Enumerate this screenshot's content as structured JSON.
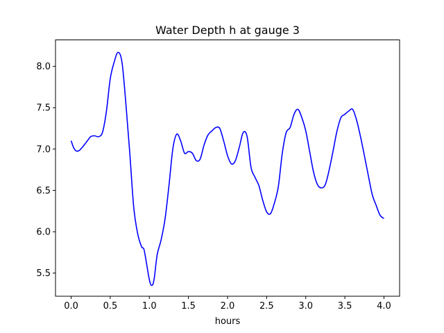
{
  "chart_data": {
    "type": "line",
    "title": "Water Depth h at gauge 3",
    "xlabel": "hours",
    "ylabel": "",
    "xlim": [
      -0.2,
      4.2
    ],
    "ylim": [
      5.22,
      8.32
    ],
    "xticks": [
      0.0,
      0.5,
      1.0,
      1.5,
      2.0,
      2.5,
      3.0,
      3.5,
      4.0
    ],
    "xtick_labels": [
      "0.0",
      "0.5",
      "1.0",
      "1.5",
      "2.0",
      "2.5",
      "3.0",
      "3.5",
      "4.0"
    ],
    "yticks": [
      5.5,
      6.0,
      6.5,
      7.0,
      7.5,
      8.0
    ],
    "ytick_labels": [
      "5.5",
      "6.0",
      "6.5",
      "7.0",
      "7.5",
      "8.0"
    ],
    "grid": false,
    "series": [
      {
        "color": "#0000ff",
        "x": [
          0.0,
          0.03,
          0.06,
          0.1,
          0.15,
          0.2,
          0.25,
          0.3,
          0.35,
          0.4,
          0.45,
          0.5,
          0.55,
          0.6,
          0.65,
          0.7,
          0.75,
          0.8,
          0.85,
          0.9,
          0.93,
          0.96,
          1.0,
          1.03,
          1.06,
          1.1,
          1.15,
          1.2,
          1.25,
          1.3,
          1.35,
          1.4,
          1.45,
          1.5,
          1.55,
          1.6,
          1.65,
          1.7,
          1.75,
          1.8,
          1.85,
          1.9,
          1.95,
          2.0,
          2.05,
          2.1,
          2.15,
          2.2,
          2.25,
          2.3,
          2.35,
          2.4,
          2.45,
          2.5,
          2.55,
          2.6,
          2.65,
          2.7,
          2.75,
          2.8,
          2.85,
          2.9,
          2.95,
          3.0,
          3.05,
          3.1,
          3.15,
          3.2,
          3.25,
          3.3,
          3.35,
          3.4,
          3.45,
          3.5,
          3.55,
          3.6,
          3.65,
          3.7,
          3.75,
          3.8,
          3.85,
          3.9,
          3.95,
          4.0
        ],
        "y": [
          7.1,
          7.02,
          6.98,
          6.98,
          7.03,
          7.09,
          7.15,
          7.16,
          7.15,
          7.2,
          7.45,
          7.85,
          8.05,
          8.17,
          8.05,
          7.55,
          6.95,
          6.3,
          5.98,
          5.82,
          5.79,
          5.64,
          5.42,
          5.35,
          5.42,
          5.72,
          5.9,
          6.15,
          6.55,
          7.0,
          7.18,
          7.1,
          6.95,
          6.97,
          6.95,
          6.86,
          6.88,
          7.05,
          7.17,
          7.22,
          7.26,
          7.25,
          7.1,
          6.92,
          6.82,
          6.86,
          7.02,
          7.2,
          7.15,
          6.78,
          6.66,
          6.56,
          6.38,
          6.24,
          6.22,
          6.35,
          6.55,
          6.95,
          7.2,
          7.26,
          7.42,
          7.48,
          7.38,
          7.22,
          6.97,
          6.72,
          6.57,
          6.53,
          6.57,
          6.75,
          6.98,
          7.22,
          7.38,
          7.42,
          7.46,
          7.48,
          7.35,
          7.15,
          6.92,
          6.68,
          6.45,
          6.32,
          6.2,
          6.16
        ]
      }
    ]
  }
}
